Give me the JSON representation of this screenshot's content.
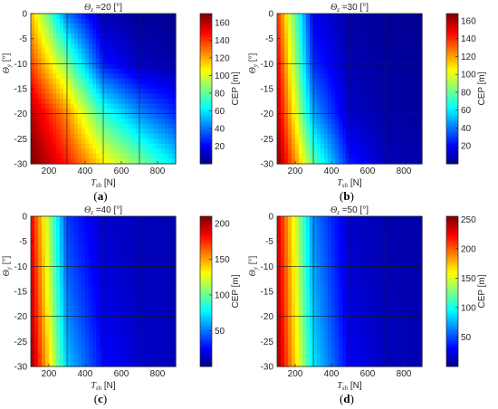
{
  "figure": {
    "x_axis_title": {
      "symbol": "T",
      "subscript": "sh",
      "unit": "[N]"
    },
    "y_axis_title": {
      "symbol": "Θ",
      "subscript": "y",
      "unit": "[°]"
    },
    "colorbar_label": "CEP [m]"
  },
  "chart_data": [
    {
      "type": "heatmap",
      "panel_label": "(a)",
      "title": "Θz =20 [°]",
      "title_symbol": "Θ",
      "title_subscript": "z",
      "title_value": "=20 [°]",
      "xlim": [
        100,
        900
      ],
      "ylim": [
        -30,
        0
      ],
      "x_ticks": [
        200,
        400,
        600,
        800
      ],
      "y_ticks": [
        0,
        -5,
        -10,
        -15,
        -20,
        -25,
        -30
      ],
      "grid_x": [
        300,
        500,
        700
      ],
      "grid_y": [
        -10,
        -20
      ],
      "x": [
        100,
        300,
        500,
        700,
        900
      ],
      "y": [
        0,
        -10,
        -20,
        -30
      ],
      "values": [
        [
          118,
          40,
          8,
          4,
          3
        ],
        [
          138,
          85,
          25,
          10,
          6
        ],
        [
          162,
          125,
          72,
          45,
          28
        ],
        [
          172,
          145,
          110,
          85,
          60
        ]
      ],
      "colorbar": {
        "min": 0,
        "max": 170,
        "ticks": [
          20,
          40,
          60,
          80,
          100,
          120,
          140,
          160
        ]
      }
    },
    {
      "type": "heatmap",
      "panel_label": "(b)",
      "title": "Θz =30 [°]",
      "title_symbol": "Θ",
      "title_subscript": "z",
      "title_value": "=30 [°]",
      "xlim": [
        100,
        900
      ],
      "ylim": [
        -30,
        0
      ],
      "x_ticks": [
        200,
        400,
        600,
        800
      ],
      "y_ticks": [
        0,
        -5,
        -10,
        -15,
        -20,
        -25,
        -30
      ],
      "grid_x": [
        300,
        500,
        700
      ],
      "grid_y": [
        -10,
        -20
      ],
      "x": [
        100,
        300,
        500,
        700,
        900
      ],
      "y": [
        0,
        -10,
        -20,
        -30
      ],
      "values": [
        [
          140,
          18,
          6,
          4,
          3
        ],
        [
          150,
          28,
          8,
          5,
          4
        ],
        [
          158,
          48,
          12,
          6,
          5
        ],
        [
          168,
          80,
          25,
          10,
          6
        ]
      ],
      "colorbar": {
        "min": 0,
        "max": 168,
        "ticks": [
          20,
          40,
          60,
          80,
          100,
          120,
          140,
          160
        ]
      }
    },
    {
      "type": "heatmap",
      "panel_label": "(c)",
      "title": "Θz =40 [°]",
      "title_symbol": "Θ",
      "title_subscript": "z",
      "title_value": "=40 [°]",
      "xlim": [
        100,
        900
      ],
      "ylim": [
        -30,
        0
      ],
      "x_ticks": [
        200,
        400,
        600,
        800
      ],
      "y_ticks": [
        0,
        -5,
        -10,
        -15,
        -20,
        -25,
        -30
      ],
      "grid_x": [
        300,
        500,
        700
      ],
      "grid_y": [
        -10,
        -20
      ],
      "x": [
        100,
        300,
        500,
        700,
        900
      ],
      "y": [
        0,
        -10,
        -20,
        -30
      ],
      "values": [
        [
          188,
          38,
          15,
          12,
          10
        ],
        [
          195,
          45,
          18,
          13,
          11
        ],
        [
          200,
          55,
          22,
          14,
          12
        ],
        [
          208,
          68,
          28,
          16,
          12
        ]
      ],
      "colorbar": {
        "min": 0,
        "max": 210,
        "ticks": [
          50,
          100,
          150,
          200
        ]
      }
    },
    {
      "type": "heatmap",
      "panel_label": "(d)",
      "title": "Θz =50 [°]",
      "title_symbol": "Θ",
      "title_subscript": "z",
      "title_value": "=50 [°]",
      "xlim": [
        100,
        900
      ],
      "ylim": [
        -30,
        0
      ],
      "x_ticks": [
        200,
        400,
        600,
        800
      ],
      "y_ticks": [
        0,
        -5,
        -10,
        -15,
        -20,
        -25,
        -30
      ],
      "grid_x": [
        300,
        500,
        700
      ],
      "grid_y": [
        -10,
        -20
      ],
      "x": [
        100,
        300,
        500,
        700,
        900
      ],
      "y": [
        0,
        -10,
        -20,
        -30
      ],
      "values": [
        [
          235,
          65,
          18,
          12,
          10
        ],
        [
          240,
          72,
          20,
          13,
          11
        ],
        [
          244,
          80,
          24,
          14,
          12
        ],
        [
          250,
          90,
          30,
          16,
          12
        ]
      ],
      "colorbar": {
        "min": 0,
        "max": 255,
        "ticks": [
          50,
          100,
          150,
          200,
          250
        ]
      }
    }
  ]
}
